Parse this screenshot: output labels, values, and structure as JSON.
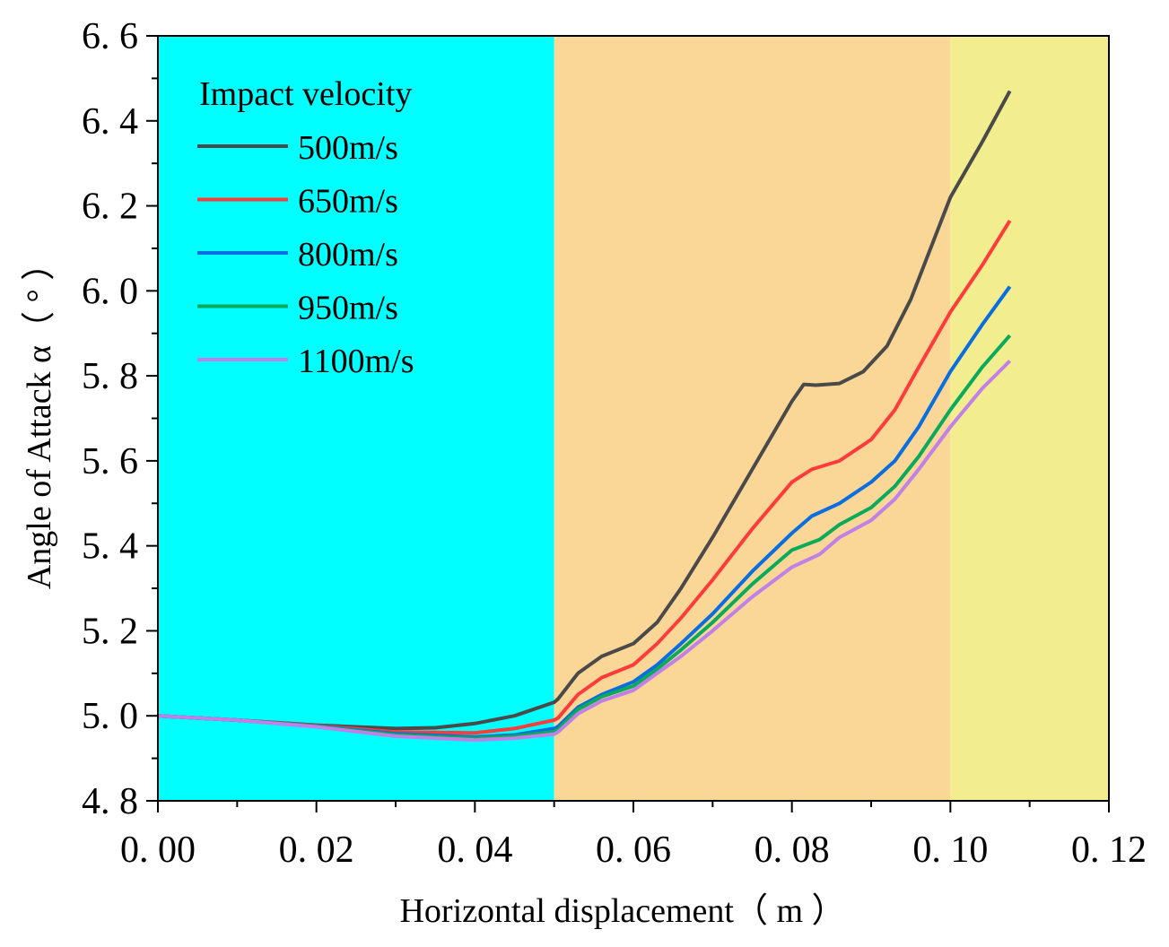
{
  "chart_data": {
    "type": "line",
    "title": "",
    "xlabel": "Horizontal displacement（ m ）",
    "ylabel": "Angle of Attack α（ ° ）",
    "xlim": [
      0,
      0.12
    ],
    "ylim": [
      4.8,
      6.6
    ],
    "xticks": [
      0,
      0.02,
      0.04,
      0.06,
      0.08,
      0.1,
      0.12
    ],
    "xtick_labels": [
      "0. 00",
      "0. 02",
      "0. 04",
      "0. 06",
      "0. 08",
      "0. 10",
      "0. 12"
    ],
    "yticks": [
      4.8,
      5.0,
      5.2,
      5.4,
      5.6,
      5.8,
      6.0,
      6.2,
      6.4,
      6.6
    ],
    "ytick_labels": [
      "4. 8",
      "5. 0",
      "5. 2",
      "5. 4",
      "5. 6",
      "5. 8",
      "6. 0",
      "6. 2",
      "6. 4",
      "6. 6"
    ],
    "grid": false,
    "legend": {
      "title": "Impact velocity",
      "placement": "top-left"
    },
    "background_bands": [
      {
        "from": 0,
        "to": 0.05,
        "color": "#00ffff"
      },
      {
        "from": 0.05,
        "to": 0.1,
        "color": "#fad797"
      },
      {
        "from": 0.1,
        "to": 0.12,
        "color": "#f2ee90"
      }
    ],
    "series": [
      {
        "name": "500m/s",
        "color": "#4a4a4a",
        "x": [
          0,
          0.01,
          0.02,
          0.03,
          0.035,
          0.04,
          0.045,
          0.05,
          0.0505,
          0.053,
          0.056,
          0.06,
          0.063,
          0.066,
          0.07,
          0.075,
          0.08,
          0.0815,
          0.083,
          0.086,
          0.089,
          0.092,
          0.095,
          0.1,
          0.104,
          0.1075
        ],
        "y": [
          5.0,
          4.99,
          4.978,
          4.97,
          4.972,
          4.982,
          5.0,
          5.032,
          5.04,
          5.1,
          5.14,
          5.17,
          5.22,
          5.3,
          5.42,
          5.58,
          5.74,
          5.78,
          5.778,
          5.782,
          5.81,
          5.87,
          5.98,
          6.22,
          6.35,
          6.47
        ]
      },
      {
        "name": "650m/s",
        "color": "#ff3b3b",
        "x": [
          0,
          0.01,
          0.02,
          0.03,
          0.04,
          0.045,
          0.05,
          0.0505,
          0.053,
          0.056,
          0.06,
          0.063,
          0.066,
          0.07,
          0.075,
          0.08,
          0.0825,
          0.086,
          0.09,
          0.093,
          0.096,
          0.1,
          0.104,
          0.1075
        ],
        "y": [
          5.0,
          4.99,
          4.977,
          4.962,
          4.96,
          4.97,
          4.99,
          4.995,
          5.05,
          5.09,
          5.12,
          5.17,
          5.23,
          5.32,
          5.44,
          5.55,
          5.58,
          5.6,
          5.65,
          5.72,
          5.82,
          5.95,
          6.06,
          6.165
        ]
      },
      {
        "name": "800m/s",
        "color": "#0a6ee0",
        "x": [
          0,
          0.01,
          0.02,
          0.03,
          0.04,
          0.045,
          0.05,
          0.0505,
          0.053,
          0.056,
          0.06,
          0.063,
          0.066,
          0.07,
          0.075,
          0.08,
          0.0825,
          0.086,
          0.09,
          0.093,
          0.096,
          0.1,
          0.104,
          0.1075
        ],
        "y": [
          5.0,
          4.99,
          4.976,
          4.958,
          4.95,
          4.955,
          4.97,
          4.975,
          5.02,
          5.05,
          5.08,
          5.12,
          5.17,
          5.24,
          5.34,
          5.43,
          5.47,
          5.5,
          5.55,
          5.6,
          5.68,
          5.81,
          5.92,
          6.01
        ]
      },
      {
        "name": "950m/s",
        "color": "#0aaa5a",
        "x": [
          0,
          0.01,
          0.02,
          0.03,
          0.04,
          0.045,
          0.05,
          0.0505,
          0.053,
          0.056,
          0.06,
          0.063,
          0.066,
          0.07,
          0.075,
          0.08,
          0.0835,
          0.086,
          0.09,
          0.093,
          0.096,
          0.1,
          0.104,
          0.1075
        ],
        "y": [
          5.0,
          4.99,
          4.975,
          4.955,
          4.947,
          4.952,
          4.963,
          4.968,
          5.015,
          5.045,
          5.07,
          5.11,
          5.155,
          5.22,
          5.31,
          5.39,
          5.415,
          5.45,
          5.49,
          5.54,
          5.61,
          5.72,
          5.82,
          5.895
        ]
      },
      {
        "name": "1100m/s",
        "color": "#c080e8",
        "x": [
          0,
          0.01,
          0.02,
          0.03,
          0.04,
          0.045,
          0.05,
          0.0505,
          0.053,
          0.056,
          0.06,
          0.063,
          0.066,
          0.07,
          0.075,
          0.08,
          0.0835,
          0.086,
          0.09,
          0.093,
          0.096,
          0.1,
          0.104,
          0.1075
        ],
        "y": [
          5.0,
          4.99,
          4.974,
          4.952,
          4.943,
          4.947,
          4.957,
          4.962,
          5.005,
          5.035,
          5.06,
          5.1,
          5.14,
          5.2,
          5.28,
          5.35,
          5.38,
          5.42,
          5.46,
          5.51,
          5.58,
          5.68,
          5.77,
          5.835
        ]
      }
    ]
  }
}
